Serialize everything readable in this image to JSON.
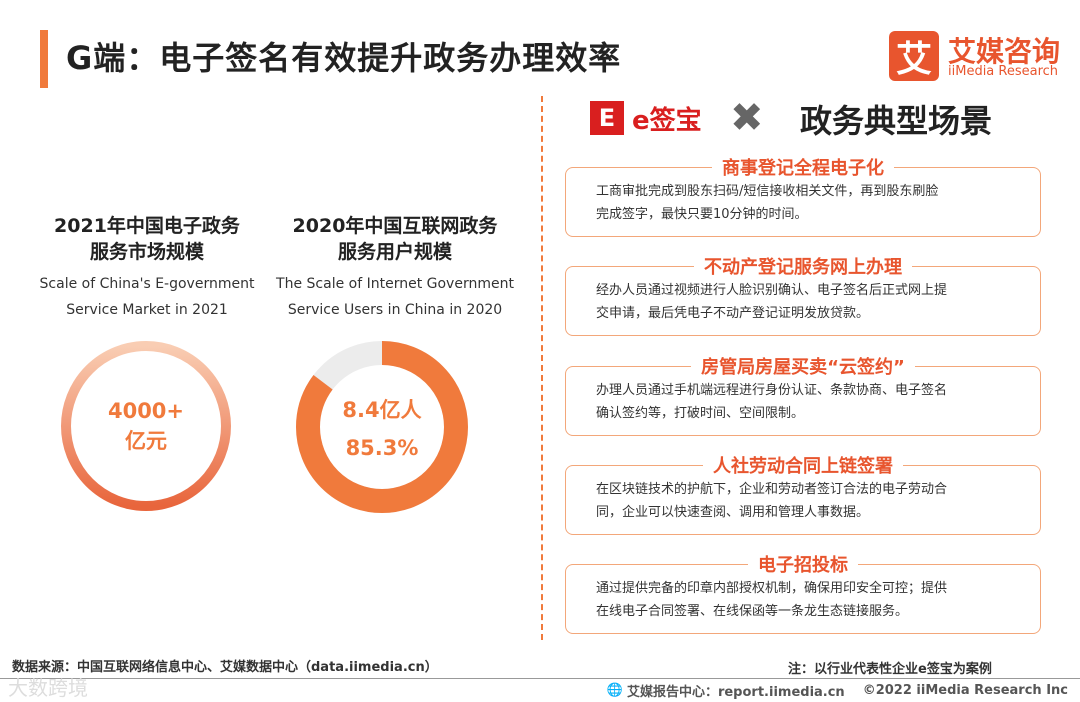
{
  "header": {
    "title": "G端：电子签名有效提升政务办理效率",
    "logo_glyph": "艾",
    "logo_cn": "艾媒咨询",
    "logo_en": "iiMedia Research",
    "accent_color": "#f07a3c",
    "brand_color": "#e8552e"
  },
  "stats": [
    {
      "title_line1": "2021年中国电子政务",
      "title_line2": "服务市场规模",
      "sub_line1": "Scale of China's E-government",
      "sub_line2": "Service Market in 2021",
      "value_line1": "4000+",
      "value_line2": "亿元"
    },
    {
      "title_line1": "2020年中国互联网政务",
      "title_line2": "服务用户规模",
      "sub_line1": "The Scale of Internet Government",
      "sub_line2": "Service Users in China in 2020",
      "value_line1": "8.4亿人",
      "value_line2": "85.3%",
      "ring_fraction": 0.853
    }
  ],
  "right": {
    "brand_icon": "E",
    "brand_name": "e签宝",
    "times_symbol": "✖",
    "scene_title": "政务典型场景"
  },
  "cards": [
    {
      "title": "商事登记全程电子化",
      "line1": "工商审批完成到股东扫码/短信接收相关文件，再到股东刷脸",
      "line2": "完成签字，最快只要10分钟的时间。"
    },
    {
      "title": "不动产登记服务网上办理",
      "line1": "经办人员通过视频进行人脸识别确认、电子签名后正式网上提",
      "line2": "交申请，最后凭电子不动产登记证明发放贷款。"
    },
    {
      "title": "房管局房屋买卖“云签约”",
      "line1": "办理人员通过手机端远程进行身份认证、条款协商、电子签名",
      "line2": "确认签约等，打破时间、空间限制。"
    },
    {
      "title": "人社劳动合同上链签署",
      "line1": "在区块链技术的护航下，企业和劳动者签订合法的电子劳动合",
      "line2": "同，企业可以快速查阅、调用和管理人事数据。"
    },
    {
      "title": "电子招投标",
      "line1": "通过提供完备的印章内部授权机制，确保用印安全可控；提供",
      "line2": "在线电子合同签署、在线保函等一条龙生态链接服务。"
    }
  ],
  "footer": {
    "source": "数据来源：中国互联网络信息中心、艾媒数据中心（data.iimedia.cn）",
    "note": "注：以行业代表性企业e签宝为案例",
    "report": "艾媒报告中心：report.iimedia.cn",
    "copyright": "©2022  iiMedia Research  Inc",
    "watermark": "大数跨境"
  }
}
